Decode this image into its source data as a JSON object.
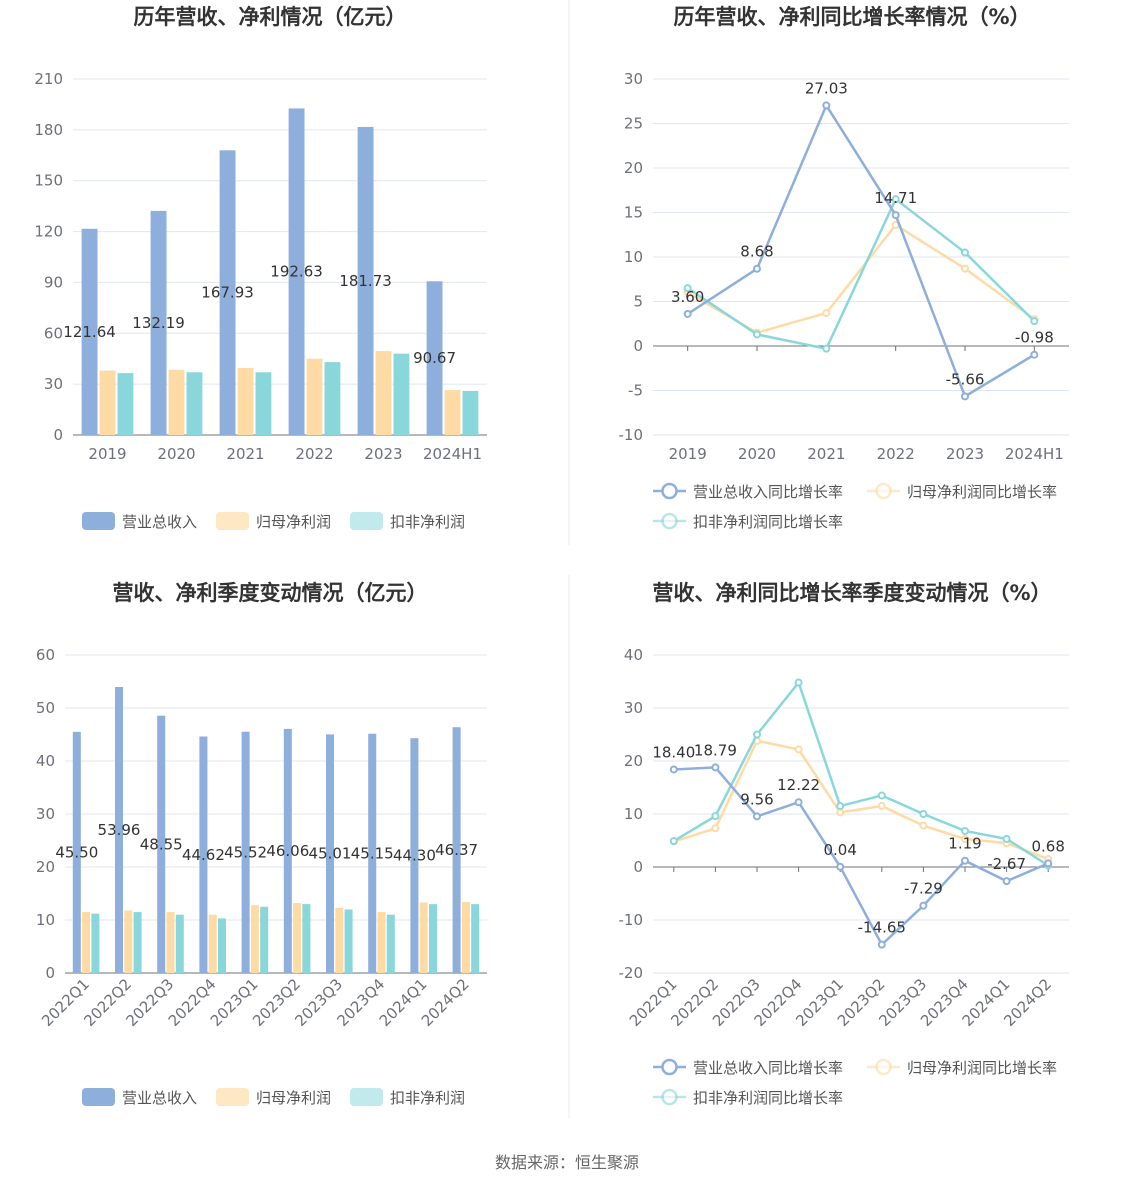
{
  "source": "数据来源：恒生聚源",
  "colors": {
    "revenue": "#8eaedb",
    "net_profit": "#fedba4",
    "deducted_profit": "#8ad7db",
    "grid": "#e0e6f1",
    "axis": "#6e7079"
  },
  "chart_data": [
    {
      "id": "annual_amount",
      "type": "bar",
      "title": "历年营收、净利情况（亿元）",
      "categories": [
        "2019",
        "2020",
        "2021",
        "2022",
        "2023",
        "2024H1"
      ],
      "ylim": [
        0,
        210
      ],
      "yticks": [
        0,
        30,
        60,
        90,
        120,
        150,
        180,
        210
      ],
      "grid": true,
      "legend_position": "bottom",
      "series": [
        {
          "name": "营业总收入",
          "values": [
            121.64,
            132.19,
            167.93,
            192.63,
            181.73,
            90.67
          ],
          "labeled": true
        },
        {
          "name": "归母净利润",
          "values": [
            38.0,
            38.5,
            39.5,
            45.0,
            49.5,
            26.5
          ],
          "labeled": false
        },
        {
          "name": "扣非净利润",
          "values": [
            36.5,
            37.0,
            37.0,
            43.0,
            48.0,
            26.0
          ],
          "labeled": false
        }
      ]
    },
    {
      "id": "annual_growth",
      "type": "line",
      "title": "历年营收、净利同比增长率情况（%）",
      "categories": [
        "2019",
        "2020",
        "2021",
        "2022",
        "2023",
        "2024H1"
      ],
      "ylim": [
        -10,
        30
      ],
      "yticks": [
        -10,
        -5,
        0,
        5,
        10,
        15,
        20,
        25,
        30
      ],
      "grid": true,
      "legend_position": "bottom",
      "series": [
        {
          "name": "营业总收入同比增长率",
          "values": [
            3.6,
            8.68,
            27.03,
            14.71,
            -5.66,
            -0.98
          ],
          "labeled": true
        },
        {
          "name": "归母净利润同比增长率",
          "values": [
            6.0,
            1.5,
            3.7,
            13.6,
            8.7,
            3.0
          ],
          "labeled": false
        },
        {
          "name": "扣非净利润同比增长率",
          "values": [
            6.5,
            1.3,
            -0.3,
            16.5,
            10.5,
            2.8
          ],
          "labeled": false
        }
      ]
    },
    {
      "id": "quarterly_amount",
      "type": "bar",
      "title": "营收、净利季度变动情况（亿元）",
      "categories": [
        "2022Q1",
        "2022Q2",
        "2022Q3",
        "2022Q4",
        "2023Q1",
        "2023Q2",
        "2023Q3",
        "2023Q4",
        "2024Q1",
        "2024Q2"
      ],
      "ylim": [
        0,
        60
      ],
      "yticks": [
        0,
        10,
        20,
        30,
        40,
        50,
        60
      ],
      "grid": true,
      "legend_position": "bottom",
      "series": [
        {
          "name": "营业总收入",
          "values": [
            45.5,
            53.96,
            48.55,
            44.62,
            45.52,
            46.06,
            45.01,
            45.15,
            44.3,
            46.37
          ],
          "labeled": true
        },
        {
          "name": "归母净利润",
          "values": [
            11.5,
            11.8,
            11.5,
            11.0,
            12.8,
            13.2,
            12.3,
            11.5,
            13.3,
            13.4
          ],
          "labeled": false
        },
        {
          "name": "扣非净利润",
          "values": [
            11.2,
            11.5,
            11.0,
            10.3,
            12.5,
            13.0,
            12.0,
            11.0,
            13.0,
            13.0
          ],
          "labeled": false
        }
      ]
    },
    {
      "id": "quarterly_growth",
      "type": "line",
      "title": "营收、净利同比增长率季度变动情况（%）",
      "categories": [
        "2022Q1",
        "2022Q2",
        "2022Q3",
        "2022Q4",
        "2023Q1",
        "2023Q2",
        "2023Q3",
        "2023Q4",
        "2024Q1",
        "2024Q2"
      ],
      "ylim": [
        -20,
        40
      ],
      "yticks": [
        -20,
        -10,
        0,
        10,
        20,
        30,
        40
      ],
      "grid": true,
      "legend_position": "bottom",
      "series": [
        {
          "name": "营业总收入同比增长率",
          "values": [
            18.4,
            18.79,
            9.56,
            12.22,
            0.04,
            -14.65,
            -7.29,
            1.19,
            -2.67,
            0.68
          ],
          "labeled": true
        },
        {
          "name": "归母净利润同比增长率",
          "values": [
            4.8,
            7.3,
            23.8,
            22.2,
            10.3,
            11.5,
            7.8,
            5.3,
            4.5,
            1.5
          ],
          "labeled": false
        },
        {
          "name": "扣非净利润同比增长率",
          "values": [
            4.9,
            9.6,
            25.0,
            34.8,
            11.5,
            13.5,
            10.0,
            6.8,
            5.3,
            0.3
          ],
          "labeled": false
        }
      ]
    }
  ]
}
